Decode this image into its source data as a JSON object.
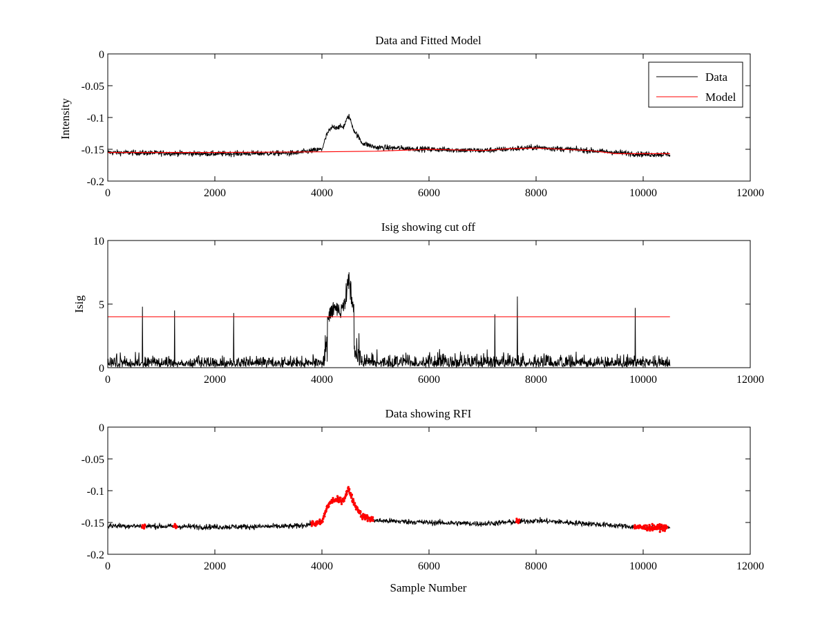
{
  "chart_data": [
    {
      "type": "line",
      "title": "Data and Fitted Model",
      "xlabel": "",
      "ylabel": "Intensity",
      "xlim": [
        0,
        12000
      ],
      "ylim": [
        -0.2,
        0
      ],
      "xticks": [
        0,
        2000,
        4000,
        6000,
        8000,
        10000,
        12000
      ],
      "yticks": [
        -0.2,
        -0.15,
        -0.1,
        -0.05,
        0
      ],
      "xtick_labels": [
        "0",
        "2000",
        "4000",
        "6000",
        "8000",
        "10000",
        "12000"
      ],
      "ytick_labels": [
        "-0.2",
        "-0.15",
        "-0.1",
        "-0.05",
        "0"
      ],
      "legend": {
        "position": "top-right",
        "entries": [
          "Data",
          "Model"
        ]
      },
      "series": [
        {
          "name": "Data",
          "color": "#000000",
          "style": "noisy-line",
          "n_samples": 10500,
          "baseline": [
            [
              0,
              -0.155
            ],
            [
              2000,
              -0.157
            ],
            [
              3500,
              -0.156
            ],
            [
              4000,
              -0.15
            ],
            [
              4100,
              -0.125
            ],
            [
              4200,
              -0.115
            ],
            [
              4400,
              -0.115
            ],
            [
              4500,
              -0.097
            ],
            [
              4600,
              -0.12
            ],
            [
              4750,
              -0.14
            ],
            [
              5000,
              -0.147
            ],
            [
              6000,
              -0.15
            ],
            [
              7000,
              -0.152
            ],
            [
              8000,
              -0.147
            ],
            [
              9000,
              -0.152
            ],
            [
              10000,
              -0.158
            ],
            [
              10500,
              -0.158
            ]
          ],
          "noise_amplitude": 0.008
        },
        {
          "name": "Model",
          "color": "#ff0000",
          "style": "line",
          "points": [
            [
              0,
              -0.155
            ],
            [
              2000,
              -0.155
            ],
            [
              4000,
              -0.154
            ],
            [
              5000,
              -0.153
            ],
            [
              6000,
              -0.15
            ],
            [
              7000,
              -0.152
            ],
            [
              7500,
              -0.149
            ],
            [
              8000,
              -0.148
            ],
            [
              9000,
              -0.152
            ],
            [
              9500,
              -0.157
            ],
            [
              10500,
              -0.157
            ]
          ]
        }
      ]
    },
    {
      "type": "line",
      "title": "Isig showing cut off",
      "xlabel": "",
      "ylabel": "Isig",
      "xlim": [
        0,
        12000
      ],
      "ylim": [
        0,
        10
      ],
      "xticks": [
        0,
        2000,
        4000,
        6000,
        8000,
        10000,
        12000
      ],
      "yticks": [
        0,
        5,
        10
      ],
      "xtick_labels": [
        "0",
        "2000",
        "4000",
        "6000",
        "8000",
        "10000",
        "12000"
      ],
      "ytick_labels": [
        "0",
        "5",
        "10"
      ],
      "series": [
        {
          "color": "#000000",
          "style": "noisy-line",
          "n_samples": 10500,
          "envelope": [
            [
              0,
              1.0
            ],
            [
              4000,
              1.0
            ],
            [
              4100,
              4.5
            ],
            [
              4200,
              5.2
            ],
            [
              4400,
              5.2
            ],
            [
              4500,
              8.0
            ],
            [
              4600,
              5.0
            ],
            [
              4750,
              1.2
            ],
            [
              10500,
              1.0
            ]
          ],
          "peaks": [
            [
              650,
              4.8
            ],
            [
              1250,
              4.5
            ],
            [
              2350,
              4.3
            ],
            [
              7230,
              4.2
            ],
            [
              7650,
              5.6
            ],
            [
              9850,
              4.7
            ]
          ]
        },
        {
          "color": "#ff0000",
          "style": "line",
          "points": [
            [
              0,
              4
            ],
            [
              10500,
              4
            ]
          ]
        }
      ]
    },
    {
      "type": "line",
      "title": "Data showing RFI",
      "xlabel": "Sample Number",
      "ylabel": "",
      "xlim": [
        0,
        12000
      ],
      "ylim": [
        -0.2,
        0
      ],
      "xticks": [
        0,
        2000,
        4000,
        6000,
        8000,
        10000,
        12000
      ],
      "yticks": [
        -0.2,
        -0.15,
        -0.1,
        -0.05,
        0
      ],
      "xtick_labels": [
        "0",
        "2000",
        "4000",
        "6000",
        "8000",
        "10000",
        "12000"
      ],
      "ytick_labels": [
        "-0.2",
        "-0.15",
        "-0.1",
        "-0.05",
        "0"
      ],
      "series": [
        {
          "color": "#000000",
          "style": "noisy-line",
          "n_samples": 10500,
          "baseline": [
            [
              0,
              -0.155
            ],
            [
              2000,
              -0.157
            ],
            [
              3500,
              -0.156
            ],
            [
              4000,
              -0.15
            ],
            [
              4100,
              -0.125
            ],
            [
              4200,
              -0.115
            ],
            [
              4400,
              -0.115
            ],
            [
              4500,
              -0.097
            ],
            [
              4600,
              -0.12
            ],
            [
              4750,
              -0.14
            ],
            [
              5000,
              -0.147
            ],
            [
              6000,
              -0.15
            ],
            [
              7000,
              -0.152
            ],
            [
              8000,
              -0.147
            ],
            [
              9000,
              -0.152
            ],
            [
              10000,
              -0.158
            ],
            [
              10500,
              -0.158
            ]
          ],
          "noise_amplitude": 0.008
        },
        {
          "color": "#ff0000",
          "style": "markers",
          "flagged_ranges": [
            [
              640,
              700
            ],
            [
              1230,
              1290
            ],
            [
              3800,
              4960
            ],
            [
              7630,
              7690
            ],
            [
              9830,
              10450
            ]
          ]
        }
      ]
    }
  ]
}
